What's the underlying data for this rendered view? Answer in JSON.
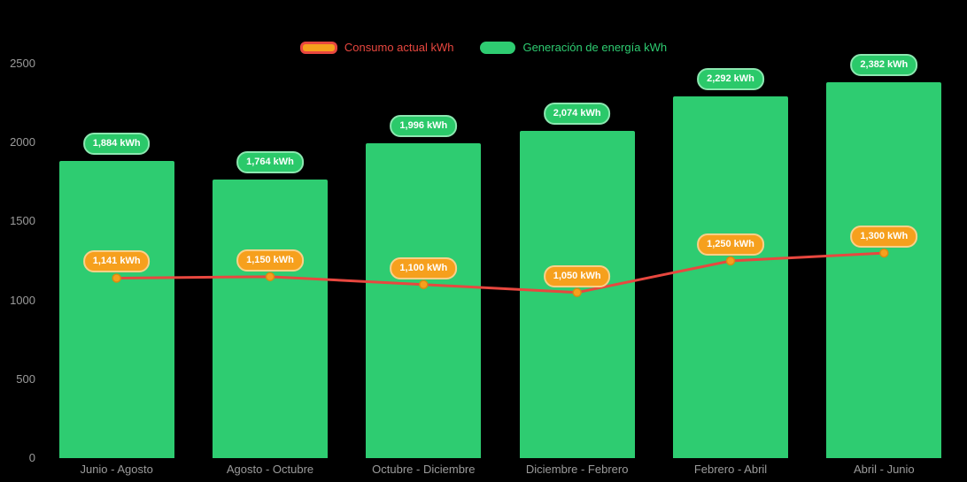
{
  "chart_data": {
    "type": "bar",
    "title": "",
    "xlabel": "",
    "ylabel": "",
    "ylim": [
      0,
      2500
    ],
    "y_ticks": [
      "0",
      "500",
      "1000",
      "1500",
      "2000",
      "2500"
    ],
    "y_tick_values": [
      0,
      500,
      1000,
      1500,
      2000,
      2500
    ],
    "grid": false,
    "legend_position": "top",
    "categories": [
      "Junio - Agosto",
      "Agosto - Octubre",
      "Octubre - Diciembre",
      "Diciembre - Febrero",
      "Febrero - Abril",
      "Abril - Junio"
    ],
    "series": [
      {
        "name": "Consumo actual kWh",
        "type": "line",
        "color": "#e8473f",
        "marker_color": "#f6a01d",
        "values": [
          1141,
          1150,
          1100,
          1050,
          1250,
          1300
        ],
        "labels": [
          "1,141 kWh",
          "1,150 kWh",
          "1,100 kWh",
          "1,050 kWh",
          "1,250 kWh",
          "1,300 kWh"
        ]
      },
      {
        "name": "Generación de energía kWh",
        "type": "bar",
        "color": "#2ecc71",
        "values": [
          1884,
          1764,
          1996,
          2074,
          2292,
          2382
        ],
        "labels": [
          "1,884 kWh",
          "1,764 kWh",
          "1,996 kWh",
          "2,074 kWh",
          "2,292 kWh",
          "2,382 kWh"
        ]
      }
    ],
    "colors": {
      "background": "#000000",
      "bar_green": "#2ecc71",
      "pill_green": "#2bc96a",
      "line_red": "#e8473f",
      "marker_orange": "#f6a01d",
      "axis_text": "#9b9b9b"
    }
  }
}
